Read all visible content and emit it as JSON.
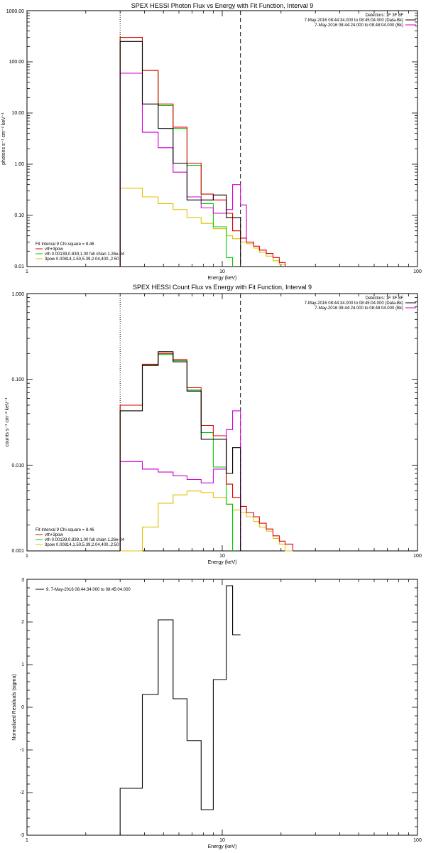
{
  "colors": {
    "black": "#000000",
    "red": "#e00000",
    "green": "#00c800",
    "magenta": "#d000d0",
    "yellow": "#e0c000"
  },
  "chart_data": [
    {
      "type": "line",
      "title": "SPEX HESSI Photon Flux vs Energy with Fit Function, Interval 9",
      "xlabel": "Energy (keV)",
      "ylabel": "photons s⁻¹ cm⁻² keV⁻¹",
      "xscale": "log",
      "yscale": "log",
      "xlim": [
        1,
        100
      ],
      "ylim": [
        0.01,
        1000
      ],
      "x_ticks": [
        "1",
        "10",
        "100"
      ],
      "y_ticks": [
        "0.01",
        "0.10",
        "1.00",
        "10.00",
        "100.00",
        "1000.00"
      ],
      "legend_top": {
        "position": "top-right",
        "lines": [
          "Detectors: 1F 3F 8F",
          "7-May-2016 08:44:34.000 to 08:45:04.000 (Data-Bk)",
          "7-May-2016 08:44:24.000 to 08:48:04.000 (Bk)"
        ]
      },
      "legend_bottom": {
        "position": "bottom-left",
        "lines": [
          "Fit Interval 9   Chi-square = 8.46",
          "vth+3pow",
          "vth 0.00139,0.839,1.00  full chian 1.26e-04",
          "3pow 0.00814,1.50,5.39,2.04,400.,2.50"
        ]
      },
      "vlines": [
        {
          "x": 3.0,
          "style": "dotted"
        },
        {
          "x": 12.4,
          "style": "dashed"
        }
      ],
      "series": [
        {
          "name": "7-May-2016 08:44:34.000 to 08:45:04.000 (Data-Bk)",
          "color": "black",
          "bins": [
            3.0,
            3.9,
            4.7,
            5.6,
            6.6,
            7.8,
            9.0,
            10.5,
            11.3,
            12.4
          ],
          "values": [
            250,
            15,
            5,
            1.05,
            0.2,
            0.2,
            0.25,
            0.09,
            0.09
          ]
        },
        {
          "name": "7-May-2016 08:44:24.000 to 08:48:04.000 (Bk)",
          "color": "magenta",
          "bins": [
            3.0,
            3.9,
            4.7,
            5.6,
            6.6,
            7.8,
            9.0,
            10.5,
            11.3,
            12.4,
            13.3
          ],
          "values": [
            60,
            4.2,
            2.1,
            0.7,
            0.23,
            0.14,
            0.11,
            0.13,
            0.4,
            0.16,
            0.03
          ]
        },
        {
          "name": "vth+3pow",
          "color": "red",
          "bins": [
            3.0,
            3.9,
            4.7,
            5.6,
            6.6,
            7.8,
            9.0,
            10.5,
            11.3,
            12.4,
            13.3,
            14.5,
            15.5,
            16.8,
            18.2,
            19.6,
            21.0
          ],
          "values": [
            300,
            68,
            15,
            5.3,
            1.05,
            0.26,
            0.2,
            0.11,
            0.05,
            0.036,
            0.03,
            0.025,
            0.021,
            0.018,
            0.015,
            0.012
          ]
        },
        {
          "name": "vth 0.00139,0.839,1.00  full chian 1.26e-04",
          "color": "green",
          "bins": [
            3.0,
            3.9,
            4.7,
            5.6,
            6.6,
            7.8,
            9.0,
            10.5,
            11.3
          ],
          "values": [
            300,
            68,
            14,
            5,
            0.95,
            0.17,
            0.06,
            0.015
          ]
        },
        {
          "name": "3pow 0.00814,1.50,5.39,2.04,400.,2.50",
          "color": "yellow",
          "bins": [
            3.0,
            3.9,
            4.7,
            5.6,
            6.6,
            7.8,
            9.0,
            10.5,
            11.3,
            12.4,
            13.3,
            14.5,
            15.5,
            16.8,
            18.2,
            19.6,
            21.0
          ],
          "values": [
            0.34,
            0.23,
            0.17,
            0.13,
            0.09,
            0.07,
            0.055,
            0.04,
            0.035,
            0.03,
            0.028,
            0.023,
            0.019,
            0.016,
            0.013,
            0.011
          ]
        }
      ]
    },
    {
      "type": "line",
      "title": "SPEX HESSI Count Flux vs Energy with Fit Function, Interval 9",
      "xlabel": "Energy (keV)",
      "ylabel": "counts s⁻¹ cm⁻² keV⁻¹",
      "xscale": "log",
      "yscale": "log",
      "xlim": [
        1,
        100
      ],
      "ylim": [
        0.001,
        1
      ],
      "x_ticks": [
        "1",
        "10",
        "100"
      ],
      "y_ticks": [
        "0.001",
        "0.010",
        "0.100",
        "1.000"
      ],
      "legend_top": {
        "position": "top-right",
        "lines": [
          "Detectors: 1F 3F 8F",
          "7-May-2016 08:44:34.000 to 08:45:04.000 (Data-Bk)",
          "7-May-2016 08:44:24.000 to 08:48:04.000 (Bk)"
        ]
      },
      "legend_bottom": {
        "position": "bottom-left",
        "lines": [
          "Fit Interval 9   Chi-square = 8.46",
          "vth+3pow",
          "vth 0.00139,0.839,1.00  full chian 1.26e-04",
          "3pow 0.00814,1.50,5.39,2.04,400.,2.50"
        ]
      },
      "vlines": [
        {
          "x": 3.0,
          "style": "dotted"
        },
        {
          "x": 12.4,
          "style": "dashed"
        }
      ],
      "series": [
        {
          "name": "7-May-2016 08:44:34.000 to 08:45:04.000 (Data-Bk)",
          "color": "black",
          "bins": [
            3.0,
            3.9,
            4.7,
            5.6,
            6.6,
            7.8,
            9.0,
            10.5,
            11.3,
            12.4
          ],
          "values": [
            0.043,
            0.145,
            0.21,
            0.16,
            0.073,
            0.02,
            0.02,
            0.008,
            0.016
          ]
        },
        {
          "name": "7-May-2016 08:44:24.000 to 08:48:04.000 (Bk)",
          "color": "magenta",
          "bins": [
            3.0,
            3.9,
            4.7,
            5.6,
            6.6,
            7.8,
            9.0,
            10.5,
            11.3,
            12.4
          ],
          "values": [
            0.011,
            0.009,
            0.0083,
            0.0075,
            0.0068,
            0.0062,
            0.009,
            0.026,
            0.043
          ]
        },
        {
          "name": "vth+3pow",
          "color": "red",
          "bins": [
            3.0,
            3.9,
            4.7,
            5.6,
            6.6,
            7.8,
            9.0,
            10.5,
            11.3,
            12.4,
            13.3,
            14.5,
            15.5,
            16.8,
            18.2,
            19.6,
            21.0,
            23.0
          ],
          "values": [
            0.05,
            0.15,
            0.2,
            0.17,
            0.08,
            0.029,
            0.022,
            0.006,
            0.0042,
            0.0033,
            0.0028,
            0.0025,
            0.0021,
            0.0018,
            0.0015,
            0.0013,
            0.0012
          ]
        },
        {
          "name": "vth 0.00139,0.839,1.00  full chian 1.26e-04",
          "color": "green",
          "bins": [
            3.0,
            3.9,
            4.7,
            5.6,
            6.6,
            7.8,
            9.0,
            10.5,
            11.3
          ],
          "values": [
            0.05,
            0.148,
            0.195,
            0.165,
            0.075,
            0.024,
            0.0095,
            0.0035
          ]
        },
        {
          "name": "3pow 0.00814,1.50,5.39,2.04,400.,2.50",
          "color": "yellow",
          "bins": [
            3.0,
            3.9,
            4.7,
            5.6,
            6.6,
            7.8,
            9.0,
            10.5,
            11.3,
            12.4,
            13.3,
            14.5,
            15.5,
            16.8,
            18.2,
            19.6,
            21.0,
            23.0
          ],
          "values": [
            0.0009,
            0.0019,
            0.0036,
            0.0045,
            0.005,
            0.0048,
            0.0042,
            0.0035,
            0.003,
            0.0028,
            0.0025,
            0.0022,
            0.0019,
            0.0017,
            0.0014,
            0.0012,
            0.001
          ]
        }
      ]
    },
    {
      "type": "line",
      "title": "",
      "xlabel": "Energy (keV)",
      "ylabel": "Normalized Residuals (sigma)",
      "xscale": "log",
      "yscale": "linear",
      "xlim": [
        1,
        100
      ],
      "ylim": [
        -3,
        3
      ],
      "x_ticks": [
        "1",
        "10",
        "100"
      ],
      "y_ticks": [
        "-3",
        "-2",
        "-1",
        "0",
        "1",
        "2",
        "3"
      ],
      "legend_top": {
        "position": "top-left",
        "lines": [
          "9.  7-May-2016 08:44:34.000 to 08:45:04.000"
        ]
      },
      "series": [
        {
          "name": "9.  7-May-2016 08:44:34.000 to 08:45:04.000",
          "color": "black",
          "bins": [
            3.0,
            3.9,
            4.7,
            5.6,
            6.6,
            7.8,
            9.0,
            10.5,
            11.3,
            12.4
          ],
          "values": [
            -1.9,
            0.3,
            2.05,
            0.2,
            -0.78,
            -2.4,
            0.65,
            2.85,
            1.7
          ]
        }
      ]
    }
  ]
}
